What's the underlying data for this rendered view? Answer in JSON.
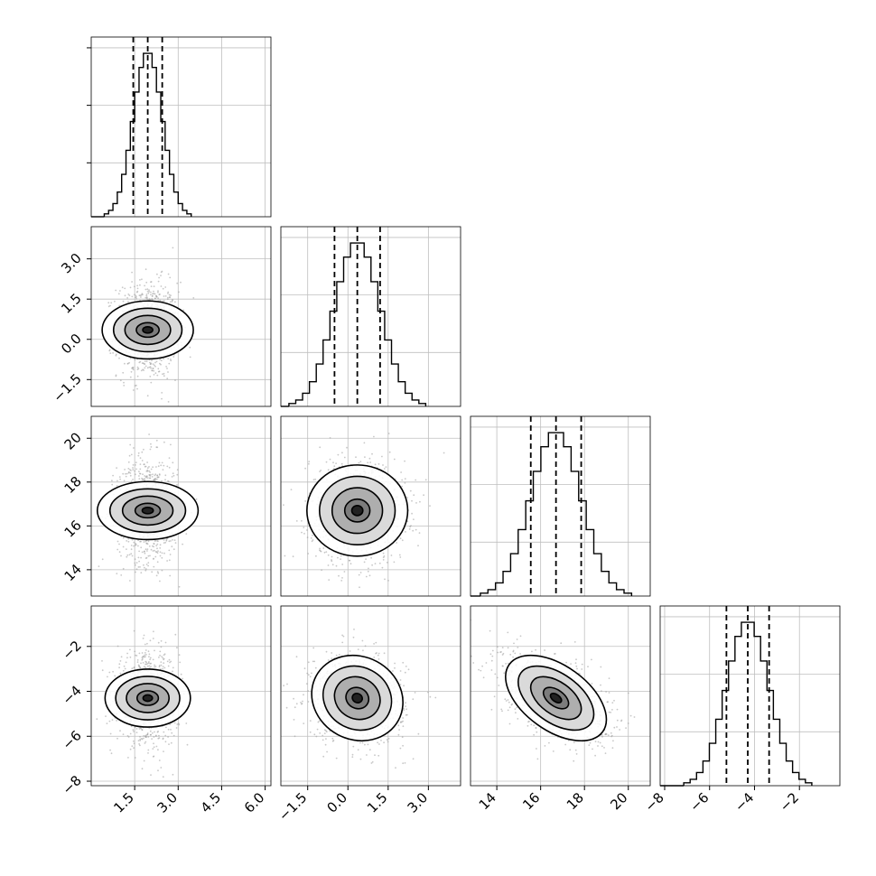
{
  "chart_data": {
    "type": "corner",
    "title": "",
    "n_params": 4,
    "grid": true,
    "colors": {
      "hist": "#000000",
      "contour": "#000000",
      "points": "#9a9a9a",
      "grid": "#bfbfbf"
    },
    "parameters": [
      {
        "index": 0,
        "range": [
          0.0,
          6.2
        ],
        "ticks": [
          1.5,
          3.0,
          4.5,
          6.0
        ],
        "tick_labels": [
          "1.5",
          "3.0",
          "4.5",
          "6.0"
        ],
        "mean": 1.95,
        "std": 0.5,
        "quantiles": [
          1.45,
          1.95,
          2.45
        ]
      },
      {
        "index": 1,
        "range": [
          -2.5,
          4.2
        ],
        "ticks": [
          -1.5,
          0.0,
          1.5,
          3.0
        ],
        "tick_labels": [
          "−1.5",
          "0.0",
          "1.5",
          "3.0"
        ],
        "mean": 0.35,
        "std": 0.85,
        "quantiles": [
          -0.5,
          0.35,
          1.2
        ]
      },
      {
        "index": 2,
        "range": [
          12.8,
          21.0
        ],
        "ticks": [
          14,
          16,
          18,
          20
        ],
        "tick_labels": [
          "14",
          "16",
          "18",
          "20"
        ],
        "mean": 16.7,
        "std": 1.15,
        "quantiles": [
          15.55,
          16.7,
          17.85
        ]
      },
      {
        "index": 3,
        "range": [
          -8.2,
          -0.2
        ],
        "ticks": [
          -8,
          -6,
          -4,
          -2
        ],
        "tick_labels": [
          "−8",
          "−6",
          "−4",
          "−2"
        ],
        "mean": -4.3,
        "std": 0.95,
        "quantiles": [
          -5.25,
          -4.3,
          -3.35
        ]
      }
    ],
    "correlations": {
      "1-0": 0.0,
      "2-0": 0.0,
      "2-1": 0.0,
      "3-0": 0.0,
      "3-1": -0.1,
      "3-2": -0.5
    },
    "contour_levels_sigma": [
      0.5,
      1.0,
      1.5,
      2.0
    ]
  }
}
